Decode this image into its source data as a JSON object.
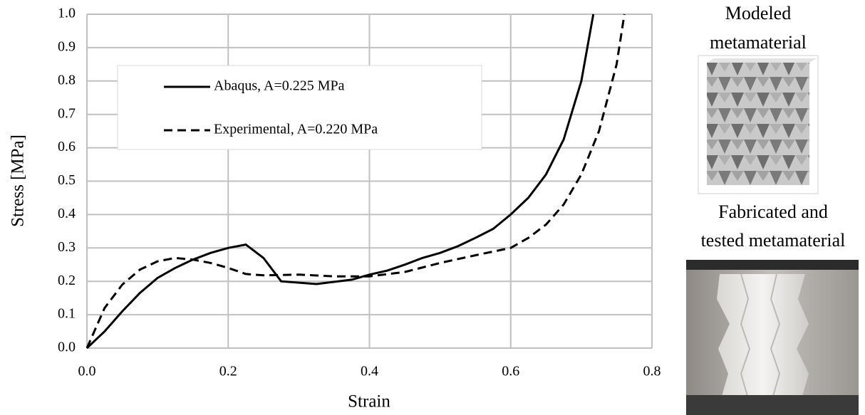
{
  "chart_data": {
    "type": "line",
    "xlabel": "Strain",
    "ylabel": "Stress [MPa]",
    "xlim": [
      0,
      0.8
    ],
    "ylim": [
      0,
      1.0
    ],
    "xticks": [
      {
        "value": 0,
        "label": "0.0"
      },
      0.2,
      0.4,
      0.6,
      0.8
    ],
    "yticks": [
      {
        "value": 0,
        "label": "0.0"
      },
      0.1,
      0.2,
      0.3,
      0.4,
      0.5,
      0.6,
      0.7,
      0.8,
      0.9,
      {
        "value": 1,
        "label": "1.0"
      }
    ],
    "grid": true,
    "legend": "upper left",
    "series": [
      {
        "name": "Abaqus, A=0.225 MPa",
        "color": "#000000",
        "linestyle": "solid",
        "x": [
          0,
          0.025,
          0.05,
          0.075,
          0.1,
          0.125,
          0.15,
          0.175,
          0.2,
          0.225,
          0.25,
          0.275,
          0.325,
          0.375,
          0.4,
          0.425,
          0.45,
          0.475,
          0.5,
          0.525,
          0.55,
          0.575,
          0.6,
          0.625,
          0.65,
          0.675,
          0.7,
          0.717
        ],
        "values": [
          0,
          0.05,
          0.11,
          0.165,
          0.21,
          0.24,
          0.265,
          0.285,
          0.3,
          0.31,
          0.27,
          0.2,
          0.192,
          0.205,
          0.22,
          0.232,
          0.25,
          0.27,
          0.285,
          0.305,
          0.33,
          0.357,
          0.4,
          0.45,
          0.52,
          0.625,
          0.8,
          1.0
        ]
      },
      {
        "name": "Experimental, A=0.220 MPa",
        "color": "#000000",
        "linestyle": "dashed",
        "x": [
          0,
          0.025,
          0.05,
          0.075,
          0.1,
          0.125,
          0.15,
          0.175,
          0.2,
          0.225,
          0.25,
          0.3,
          0.35,
          0.4,
          0.45,
          0.5,
          0.55,
          0.6,
          0.625,
          0.65,
          0.675,
          0.7,
          0.725,
          0.75,
          0.761
        ],
        "values": [
          0,
          0.12,
          0.19,
          0.235,
          0.26,
          0.27,
          0.265,
          0.255,
          0.24,
          0.222,
          0.218,
          0.22,
          0.215,
          0.215,
          0.228,
          0.255,
          0.278,
          0.3,
          0.33,
          0.37,
          0.43,
          0.52,
          0.65,
          0.85,
          1.0
        ]
      }
    ]
  },
  "panels": [
    {
      "title_lines": [
        "Modeled",
        "metamaterial"
      ]
    },
    {
      "title_lines": [
        "Fabricated and",
        "tested metamaterial"
      ]
    }
  ]
}
